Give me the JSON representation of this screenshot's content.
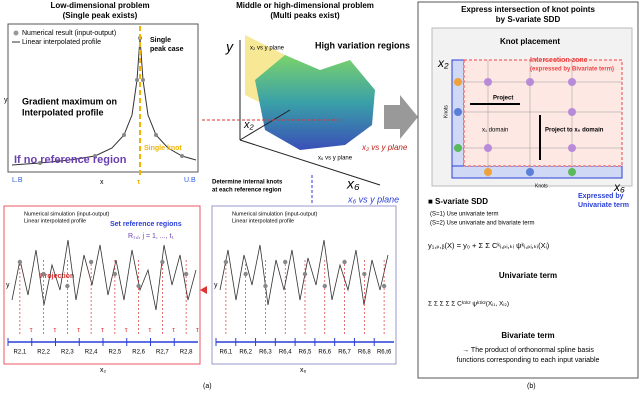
{
  "panel_a": {
    "low_dim": {
      "title": "Low-dimensional problem",
      "subtitle": "(Single peak exists)",
      "legend": [
        "Numerical result (input-output)",
        "Linear interpolated profile"
      ],
      "peak_label": [
        "Single",
        "peak case"
      ],
      "gradient_label": [
        "Gradient maximum on",
        "Interpolated profile"
      ],
      "no_ref": "If no reference region",
      "single_knot": "Single knot",
      "lb": "L.B",
      "ub": "U.B",
      "x_label": "x",
      "y_label": "y",
      "tau": "τ"
    },
    "high_dim": {
      "title": "Middle or high-dimensional problem",
      "subtitle": "(Multi peaks exist)",
      "high_var": "High variation regions",
      "axis_y": "y",
      "axis_x2": "x₂",
      "axis_x6": "x₆",
      "plane_x2": "x₂ vs y plane",
      "plane_x6": "x₆ vs y plane",
      "determine": [
        "Determine internal knots",
        "at each reference region"
      ],
      "out_x2": "x₂ vs y plane",
      "out_x6": "x₆ vs y plane"
    },
    "plot_x2": {
      "legend": [
        "Numerical simulation (input-output)",
        "Linear interpolated profile"
      ],
      "set_ref": "Set reference regions",
      "ref_formula": "R₁,ⱼ, j = 1, ..., t₁",
      "projection": "Projection",
      "tau": "τ",
      "regions": [
        "R2,1",
        "R2,2",
        "R2,3",
        "R2,4",
        "R2,5",
        "R2,6",
        "R2,7",
        "R2,8"
      ],
      "x_label": "x₂",
      "y_label": "y"
    },
    "plot_x6": {
      "legend": [
        "Numerical simulation (input-output)",
        "Linear interpolated profile"
      ],
      "regions": [
        "R6,1",
        "R6,2",
        "R6,3",
        "R6,4",
        "R6,5",
        "R6,6",
        "R6,7",
        "R6,8",
        "R6,t6"
      ],
      "x_label": "x₆",
      "y_label": "y"
    },
    "caption": "(a)"
  },
  "panel_b": {
    "title": [
      "Express intersection of knot points",
      "by S-variate SDD"
    ],
    "knot_placement": "Knot placement",
    "intersection": [
      "Intersection zone",
      "(expressed by Bivariate term)"
    ],
    "project": "Project",
    "x1_domain": "x₁ domain",
    "project_to": "Project to x₆ domain",
    "knots_v": "Knots",
    "knots_h": "Knots",
    "axis_x2": "x₂",
    "axis_x6": "x₆",
    "expressed": [
      "Expressed by",
      "Univariate term"
    ],
    "sdd_title": "■ S-variate SDD",
    "s1": "(S=1) Use univariate term",
    "s2": "(S=2) Use univariate and bivariate term",
    "uni_formula": "y₁,ₚ,ᵦ(X) = y₀ + Σ Σ Cᵏᵢ,ₚᵢ,ₖᵢ ψᵏᵢ,ₚᵢ,ₖᵢ(Xᵢ)",
    "uni_term": "Univariate term",
    "bi_formula": "Σ Σ Σ Σ Σ Cᵏ¹ᵏ² ψᵏ¹ᵏ²(Xᵢ₁, Xᵢ₂)",
    "bi_term": "Bivariate term",
    "note": [
      "→ The product of orthonormal spline basis",
      "functions corresponding to each input variable"
    ],
    "caption": "(b)"
  }
}
